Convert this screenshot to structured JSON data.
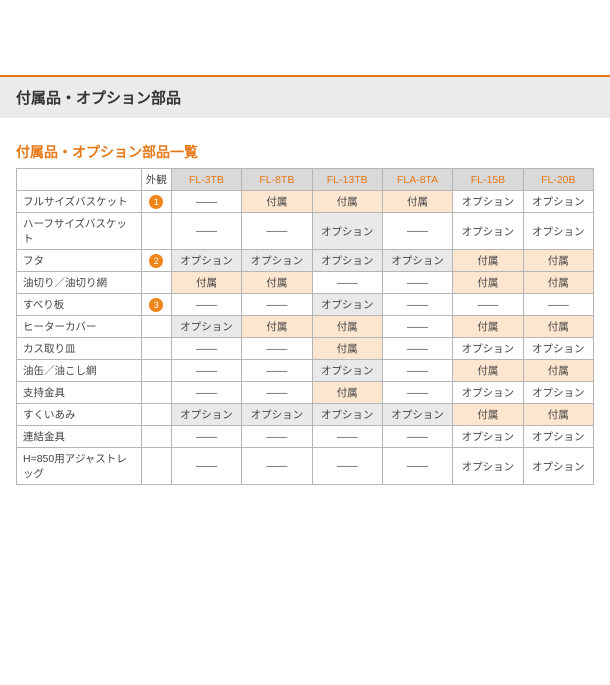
{
  "header": {
    "title": "付属品・オプション部品"
  },
  "section": {
    "title": "付属品・オプション部品一覧"
  },
  "table": {
    "columns": {
      "rowlabel": "",
      "gaikan": "外観",
      "models": [
        "FL-3TB",
        "FL-8TB",
        "FL-13TB",
        "FLA-8TA",
        "FL-15B",
        "FL-20B"
      ]
    },
    "rows": [
      {
        "label": "フルサイズバスケット",
        "badge": "1",
        "cells": [
          {
            "v": "——"
          },
          {
            "v": "付属",
            "c": "hl"
          },
          {
            "v": "付属",
            "c": "hl"
          },
          {
            "v": "付属",
            "c": "hl"
          },
          {
            "v": "オプション"
          },
          {
            "v": "オプション"
          }
        ]
      },
      {
        "label": "ハーフサイズバスケット",
        "badge": "",
        "cells": [
          {
            "v": "——"
          },
          {
            "v": "——"
          },
          {
            "v": "オプション",
            "c": "gr"
          },
          {
            "v": "——"
          },
          {
            "v": "オプション"
          },
          {
            "v": "オプション"
          }
        ]
      },
      {
        "label": "フタ",
        "badge": "2",
        "cells": [
          {
            "v": "オプション",
            "c": "gr"
          },
          {
            "v": "オプション",
            "c": "gr"
          },
          {
            "v": "オプション",
            "c": "gr"
          },
          {
            "v": "オプション",
            "c": "gr"
          },
          {
            "v": "付属",
            "c": "hl"
          },
          {
            "v": "付属",
            "c": "hl"
          }
        ]
      },
      {
        "label": "油切り／油切り網",
        "badge": "",
        "cells": [
          {
            "v": "付属",
            "c": "hl"
          },
          {
            "v": "付属",
            "c": "hl"
          },
          {
            "v": "——"
          },
          {
            "v": "——"
          },
          {
            "v": "付属",
            "c": "hl"
          },
          {
            "v": "付属",
            "c": "hl"
          }
        ]
      },
      {
        "label": "すべり板",
        "badge": "3",
        "cells": [
          {
            "v": "——"
          },
          {
            "v": "——"
          },
          {
            "v": "オプション",
            "c": "gr"
          },
          {
            "v": "——"
          },
          {
            "v": "——"
          },
          {
            "v": "——"
          }
        ]
      },
      {
        "label": "ヒーターカバー",
        "badge": "",
        "cells": [
          {
            "v": "オプション",
            "c": "gr"
          },
          {
            "v": "付属",
            "c": "hl"
          },
          {
            "v": "付属",
            "c": "hl"
          },
          {
            "v": "——"
          },
          {
            "v": "付属",
            "c": "hl"
          },
          {
            "v": "付属",
            "c": "hl"
          }
        ]
      },
      {
        "label": "カス取り皿",
        "badge": "",
        "cells": [
          {
            "v": "——"
          },
          {
            "v": "——"
          },
          {
            "v": "付属",
            "c": "hl"
          },
          {
            "v": "——"
          },
          {
            "v": "オプション"
          },
          {
            "v": "オプション"
          }
        ]
      },
      {
        "label": "油缶／油こし網",
        "badge": "",
        "cells": [
          {
            "v": "——"
          },
          {
            "v": "——"
          },
          {
            "v": "オプション",
            "c": "gr"
          },
          {
            "v": "——"
          },
          {
            "v": "付属",
            "c": "hl"
          },
          {
            "v": "付属",
            "c": "hl"
          }
        ]
      },
      {
        "label": "支持金具",
        "badge": "",
        "cells": [
          {
            "v": "——"
          },
          {
            "v": "——"
          },
          {
            "v": "付属",
            "c": "hl"
          },
          {
            "v": "——"
          },
          {
            "v": "オプション"
          },
          {
            "v": "オプション"
          }
        ]
      },
      {
        "label": "すくいあみ",
        "badge": "",
        "cells": [
          {
            "v": "オプション",
            "c": "gr"
          },
          {
            "v": "オプション",
            "c": "gr"
          },
          {
            "v": "オプション",
            "c": "gr"
          },
          {
            "v": "オプション",
            "c": "gr"
          },
          {
            "v": "付属",
            "c": "hl"
          },
          {
            "v": "付属",
            "c": "hl"
          }
        ]
      },
      {
        "label": "連結金具",
        "badge": "",
        "cells": [
          {
            "v": "——"
          },
          {
            "v": "——"
          },
          {
            "v": "——"
          },
          {
            "v": "——"
          },
          {
            "v": "オプション"
          },
          {
            "v": "オプション"
          }
        ]
      },
      {
        "label": "H=850用アジャストレッグ",
        "badge": "",
        "cells": [
          {
            "v": "——"
          },
          {
            "v": "——"
          },
          {
            "v": "——"
          },
          {
            "v": "——"
          },
          {
            "v": "オプション"
          },
          {
            "v": "オプション"
          }
        ]
      }
    ]
  },
  "colors": {
    "accent": "#e67817",
    "highlight_bg": "#fde6cf",
    "gray_bg": "#e9e9e9",
    "header_bg": "#d9d9d9",
    "band_bg": "#ebebeb",
    "border": "#b5b5b5"
  }
}
